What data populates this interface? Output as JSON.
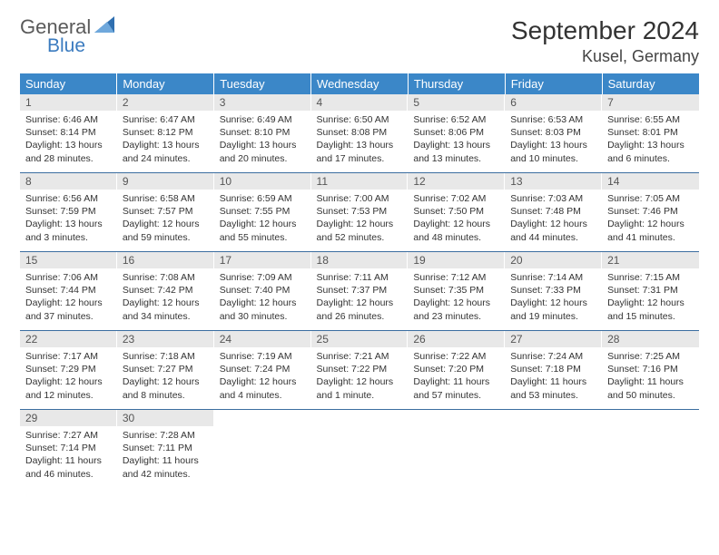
{
  "logo": {
    "word1": "General",
    "word2": "Blue"
  },
  "title": "September 2024",
  "location": "Kusel, Germany",
  "colors": {
    "header_bg": "#3b87c8",
    "header_text": "#ffffff",
    "daynum_bg": "#e8e8e8",
    "rule": "#3b6ea0",
    "logo_gray": "#5a5a5a",
    "logo_blue": "#3b7bbf"
  },
  "weekdays": [
    "Sunday",
    "Monday",
    "Tuesday",
    "Wednesday",
    "Thursday",
    "Friday",
    "Saturday"
  ],
  "weeks": [
    [
      {
        "n": "1",
        "sunrise": "6:46 AM",
        "sunset": "8:14 PM",
        "dl": "13 hours and 28 minutes."
      },
      {
        "n": "2",
        "sunrise": "6:47 AM",
        "sunset": "8:12 PM",
        "dl": "13 hours and 24 minutes."
      },
      {
        "n": "3",
        "sunrise": "6:49 AM",
        "sunset": "8:10 PM",
        "dl": "13 hours and 20 minutes."
      },
      {
        "n": "4",
        "sunrise": "6:50 AM",
        "sunset": "8:08 PM",
        "dl": "13 hours and 17 minutes."
      },
      {
        "n": "5",
        "sunrise": "6:52 AM",
        "sunset": "8:06 PM",
        "dl": "13 hours and 13 minutes."
      },
      {
        "n": "6",
        "sunrise": "6:53 AM",
        "sunset": "8:03 PM",
        "dl": "13 hours and 10 minutes."
      },
      {
        "n": "7",
        "sunrise": "6:55 AM",
        "sunset": "8:01 PM",
        "dl": "13 hours and 6 minutes."
      }
    ],
    [
      {
        "n": "8",
        "sunrise": "6:56 AM",
        "sunset": "7:59 PM",
        "dl": "13 hours and 3 minutes."
      },
      {
        "n": "9",
        "sunrise": "6:58 AM",
        "sunset": "7:57 PM",
        "dl": "12 hours and 59 minutes."
      },
      {
        "n": "10",
        "sunrise": "6:59 AM",
        "sunset": "7:55 PM",
        "dl": "12 hours and 55 minutes."
      },
      {
        "n": "11",
        "sunrise": "7:00 AM",
        "sunset": "7:53 PM",
        "dl": "12 hours and 52 minutes."
      },
      {
        "n": "12",
        "sunrise": "7:02 AM",
        "sunset": "7:50 PM",
        "dl": "12 hours and 48 minutes."
      },
      {
        "n": "13",
        "sunrise": "7:03 AM",
        "sunset": "7:48 PM",
        "dl": "12 hours and 44 minutes."
      },
      {
        "n": "14",
        "sunrise": "7:05 AM",
        "sunset": "7:46 PM",
        "dl": "12 hours and 41 minutes."
      }
    ],
    [
      {
        "n": "15",
        "sunrise": "7:06 AM",
        "sunset": "7:44 PM",
        "dl": "12 hours and 37 minutes."
      },
      {
        "n": "16",
        "sunrise": "7:08 AM",
        "sunset": "7:42 PM",
        "dl": "12 hours and 34 minutes."
      },
      {
        "n": "17",
        "sunrise": "7:09 AM",
        "sunset": "7:40 PM",
        "dl": "12 hours and 30 minutes."
      },
      {
        "n": "18",
        "sunrise": "7:11 AM",
        "sunset": "7:37 PM",
        "dl": "12 hours and 26 minutes."
      },
      {
        "n": "19",
        "sunrise": "7:12 AM",
        "sunset": "7:35 PM",
        "dl": "12 hours and 23 minutes."
      },
      {
        "n": "20",
        "sunrise": "7:14 AM",
        "sunset": "7:33 PM",
        "dl": "12 hours and 19 minutes."
      },
      {
        "n": "21",
        "sunrise": "7:15 AM",
        "sunset": "7:31 PM",
        "dl": "12 hours and 15 minutes."
      }
    ],
    [
      {
        "n": "22",
        "sunrise": "7:17 AM",
        "sunset": "7:29 PM",
        "dl": "12 hours and 12 minutes."
      },
      {
        "n": "23",
        "sunrise": "7:18 AM",
        "sunset": "7:27 PM",
        "dl": "12 hours and 8 minutes."
      },
      {
        "n": "24",
        "sunrise": "7:19 AM",
        "sunset": "7:24 PM",
        "dl": "12 hours and 4 minutes."
      },
      {
        "n": "25",
        "sunrise": "7:21 AM",
        "sunset": "7:22 PM",
        "dl": "12 hours and 1 minute."
      },
      {
        "n": "26",
        "sunrise": "7:22 AM",
        "sunset": "7:20 PM",
        "dl": "11 hours and 57 minutes."
      },
      {
        "n": "27",
        "sunrise": "7:24 AM",
        "sunset": "7:18 PM",
        "dl": "11 hours and 53 minutes."
      },
      {
        "n": "28",
        "sunrise": "7:25 AM",
        "sunset": "7:16 PM",
        "dl": "11 hours and 50 minutes."
      }
    ],
    [
      {
        "n": "29",
        "sunrise": "7:27 AM",
        "sunset": "7:14 PM",
        "dl": "11 hours and 46 minutes."
      },
      {
        "n": "30",
        "sunrise": "7:28 AM",
        "sunset": "7:11 PM",
        "dl": "11 hours and 42 minutes."
      },
      null,
      null,
      null,
      null,
      null
    ]
  ],
  "labels": {
    "sunrise": "Sunrise:",
    "sunset": "Sunset:",
    "daylight": "Daylight:"
  }
}
